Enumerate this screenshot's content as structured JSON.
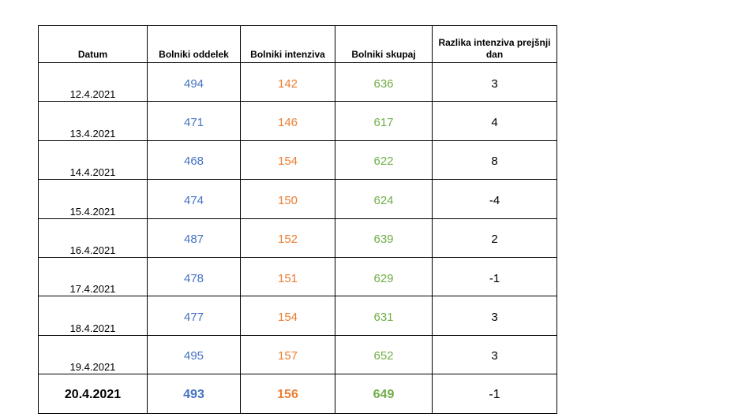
{
  "table": {
    "header": [
      "Datum",
      "Bolniki oddelek",
      "Bolniki intenziva",
      "Bolniki skupaj",
      "Razlika intenziva prejšnji dan"
    ],
    "rows": [
      [
        "12.4.2021",
        494,
        142,
        636,
        3
      ],
      [
        "13.4.2021",
        471,
        146,
        617,
        4
      ],
      [
        "14.4.2021",
        468,
        154,
        622,
        8
      ],
      [
        "15.4.2021",
        474,
        150,
        624,
        -4
      ],
      [
        "16.4.2021",
        487,
        152,
        639,
        2
      ],
      [
        "17.4.2021",
        478,
        151,
        629,
        -1
      ],
      [
        "18.4.2021",
        477,
        154,
        631,
        3
      ],
      [
        "19.4.2021",
        495,
        157,
        652,
        3
      ],
      [
        "20.4.2021",
        493,
        156,
        649,
        -1
      ]
    ]
  }
}
